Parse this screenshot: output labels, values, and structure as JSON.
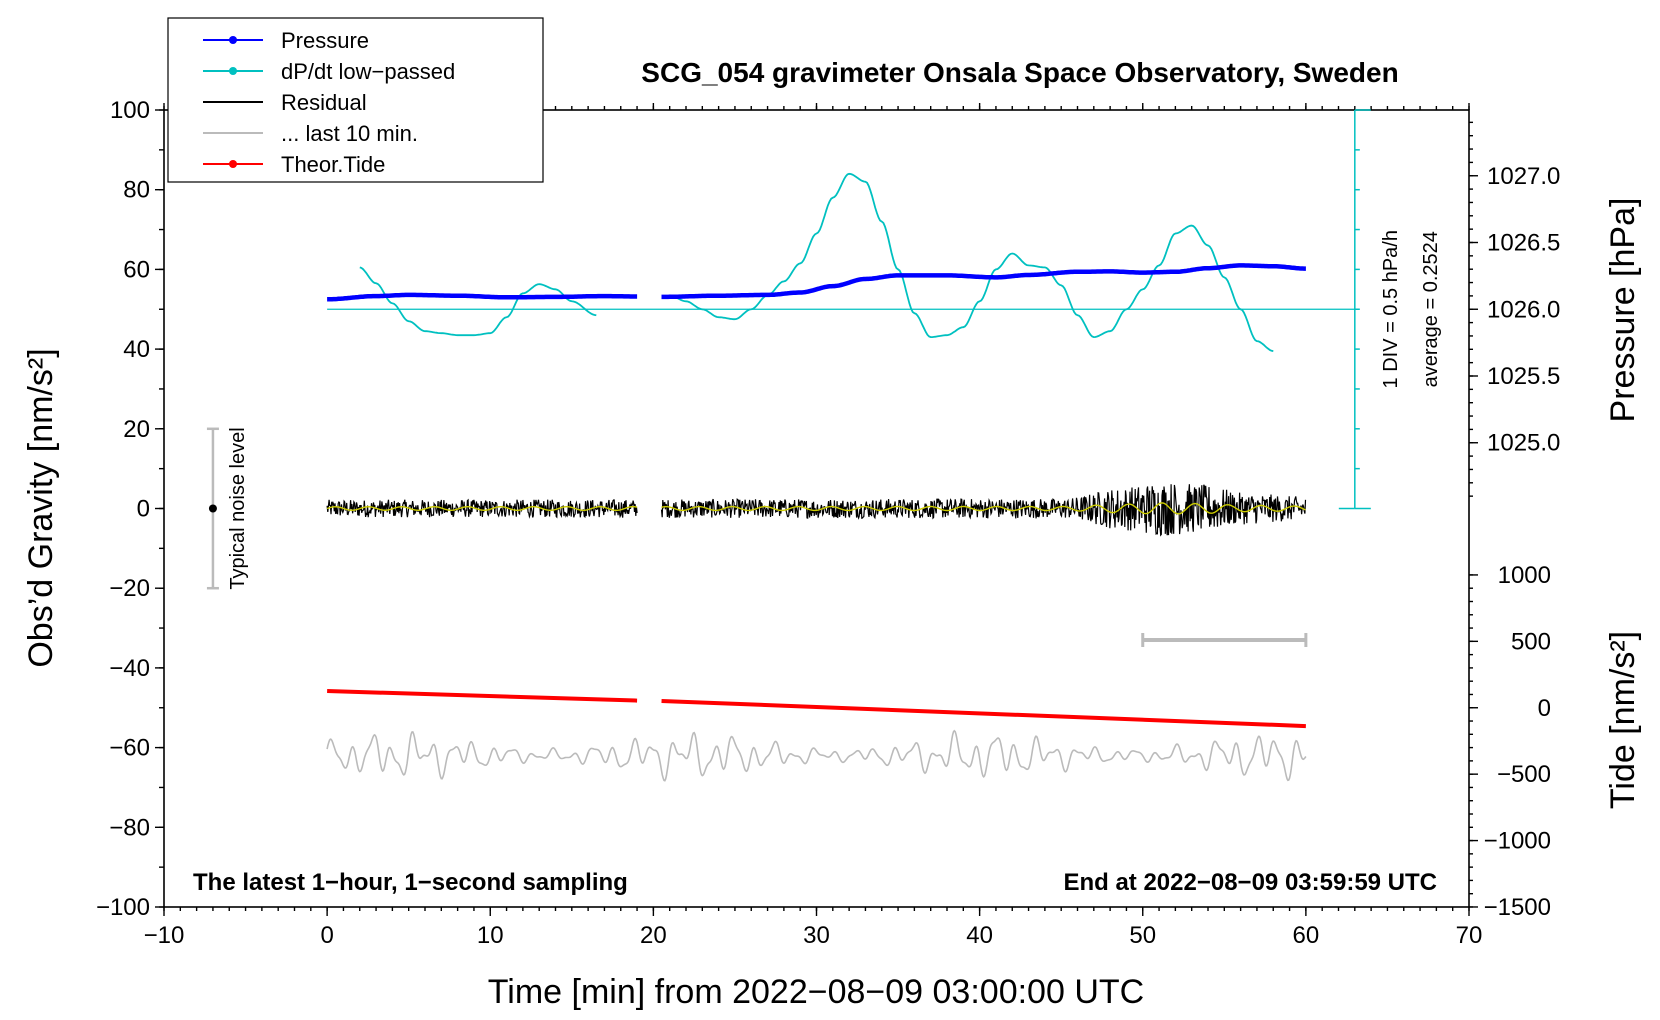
{
  "chart_data": {
    "type": "line",
    "title": "SCG_054 gravimeter Onsala Space Observatory, Sweden",
    "xlabel": "Time [min] from 2022−08−09 03:00:00 UTC",
    "ylabel_left": "Obs’d Gravity [nm/s²]",
    "ylabel_right_top": "Pressure [hPa]",
    "ylabel_right_bottom": "Tide [nm/s²]",
    "xlim": [
      -10,
      70
    ],
    "ylim": [
      -100,
      100
    ],
    "x_ticks": [
      -10,
      0,
      10,
      20,
      30,
      40,
      50,
      60,
      70
    ],
    "x_tick_labels": [
      "−10",
      "0",
      "10",
      "20",
      "30",
      "40",
      "50",
      "60",
      "70"
    ],
    "y_ticks": [
      -100,
      -80,
      -60,
      -40,
      -20,
      0,
      20,
      40,
      60,
      80,
      100
    ],
    "y_tick_labels": [
      "−100",
      "−80",
      "−60",
      "−40",
      "−20",
      "0",
      "20",
      "40",
      "60",
      "80",
      "100"
    ],
    "pressure_axis": {
      "ticks": [
        1025.0,
        1025.5,
        1026.0,
        1026.5,
        1027.0
      ],
      "tick_labels": [
        "1025.0",
        "1025.5",
        "1026.0",
        "1026.5",
        "1027.0"
      ],
      "map_left_value_at_1026": 50,
      "left_units_per_hpa": 33.5
    },
    "tide_axis": {
      "ticks": [
        -1500,
        -1000,
        -500,
        0,
        500,
        1000
      ],
      "tick_labels": [
        "−1500",
        "−1000",
        "−500",
        "0",
        "500",
        "1000"
      ],
      "map_left_value_at_0": -50,
      "left_units_per_nms2": 0.03333
    },
    "legend": [
      {
        "label": "Pressure",
        "color": "#0000ff",
        "marker": true
      },
      {
        "label": "dP/dt low−passed",
        "color": "#00c0c0",
        "marker": true
      },
      {
        "label": "Residual",
        "color": "#000000",
        "marker": false
      },
      {
        "label": "... last 10 min.",
        "color": "#bbbbbb",
        "marker": false
      },
      {
        "label": "Theor.Tide",
        "color": "#ff0000",
        "marker": true
      }
    ],
    "series": [
      {
        "name": "Pressure",
        "color": "#0000ff",
        "x": [
          0,
          3,
          5,
          8,
          11,
          14,
          17,
          19,
          20.5,
          24,
          27,
          29,
          31,
          33,
          35,
          38,
          41,
          43,
          46,
          48,
          50,
          52,
          54,
          56,
          58,
          60
        ],
        "y": [
          52.5,
          53.3,
          53.6,
          53.4,
          53.0,
          53.1,
          53.3,
          53.2,
          53.1,
          53.4,
          53.6,
          54.2,
          55.8,
          57.6,
          58.5,
          58.5,
          58.0,
          58.6,
          59.4,
          59.5,
          59.2,
          59.4,
          60.3,
          61.0,
          60.8,
          60.2
        ]
      },
      {
        "name": "dP/dt low−passed",
        "color": "#00c0c0",
        "x": [
          2,
          3,
          4,
          5,
          6,
          7,
          8,
          9,
          10,
          11,
          12,
          13,
          14,
          15,
          16.5,
          21,
          22,
          23,
          24,
          25,
          26,
          27,
          28,
          29,
          30,
          31,
          32,
          33,
          34,
          35,
          36,
          37,
          38,
          39,
          40,
          41,
          42,
          43,
          44,
          45,
          46,
          47,
          48,
          49,
          50,
          51,
          52,
          53,
          54,
          55,
          56,
          57,
          58
        ],
        "y": [
          60.5,
          56.5,
          51.5,
          47.0,
          44.5,
          44.0,
          43.5,
          43.5,
          44.0,
          48.0,
          54.0,
          56.3,
          55.0,
          52.0,
          48.5,
          53.5,
          52.0,
          50.0,
          48.0,
          47.5,
          50.0,
          53.5,
          57.0,
          61.5,
          69.0,
          78.0,
          84.0,
          82.0,
          72.0,
          60.0,
          49.0,
          43.0,
          43.5,
          45.5,
          52.0,
          60.0,
          64.0,
          61.0,
          60.5,
          56.0,
          48.5,
          43.0,
          44.5,
          50.0,
          55.0,
          61.0,
          69.0,
          71.0,
          66.0,
          58.0,
          50.0,
          42.0,
          39.5
        ]
      },
      {
        "name": "Residual",
        "color": "#000000",
        "segments": [
          [
            0,
            19
          ],
          [
            20.5,
            60
          ]
        ],
        "amplitude_by_x": [
          [
            0,
            2.2
          ],
          [
            45,
            2.5
          ],
          [
            49,
            5.5
          ],
          [
            51,
            7.0
          ],
          [
            54,
            6.0
          ],
          [
            56,
            4.0
          ],
          [
            60,
            3.0
          ]
        ]
      },
      {
        "name": "Residual (smoothed)",
        "color": "#cccc00"
      },
      {
        "name": "... last 10 min.",
        "color": "#bbbbbb",
        "segment": [
          0,
          60
        ],
        "baseline": -62,
        "amplitude": 5.5
      },
      {
        "name": "Theor.Tide",
        "color": "#ff0000",
        "x": [
          0,
          19,
          20.5,
          60
        ],
        "y": [
          -45.8,
          -48.2,
          -48.3,
          -54.6
        ],
        "gap": [
          19,
          20.5
        ]
      }
    ],
    "annotations": {
      "noise_level_label": "Typical noise level",
      "noise_level_x": -7,
      "noise_level_range": [
        -20,
        20
      ],
      "scale_bar_label_div": "1 DIV = 0.5 hPa/h",
      "scale_bar_label_avg": "average = 0.2524",
      "scale_bar_x": 63,
      "scale_bar_range": [
        0,
        100
      ],
      "dpdt_zero_line_y": 50,
      "last10_bar_x": [
        50,
        60
      ],
      "last10_bar_y": -33,
      "footer_left": "The latest 1−hour, 1−second sampling",
      "footer_right": "End at 2022−08−09 03:59:59 UTC"
    }
  }
}
